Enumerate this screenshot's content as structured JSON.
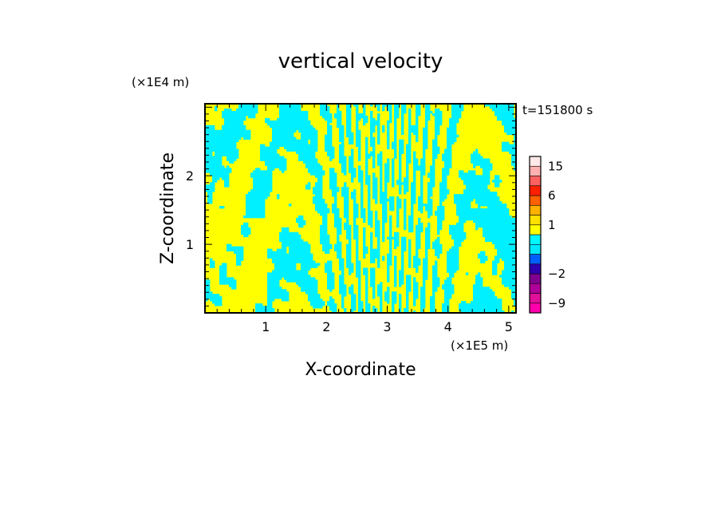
{
  "chart_data": {
    "type": "heatmap",
    "title": "vertical velocity",
    "time_label": "t=151800 s",
    "xlabel": "X-coordinate",
    "ylabel": "Z-coordinate",
    "x_unit": "(×1E5 m)",
    "y_unit": "(×1E4 m)",
    "xlim": [
      0,
      5.12
    ],
    "ylim": [
      0,
      3.05
    ],
    "x_ticks": [
      1,
      2,
      3,
      4,
      5
    ],
    "y_ticks": [
      1,
      2
    ],
    "legend_placement": "right",
    "colorbar": {
      "levels": [
        -12,
        -9,
        -6,
        -4,
        -2,
        -1,
        -0.5,
        0,
        0.5,
        1,
        2,
        4,
        6,
        9,
        12,
        15,
        20
      ],
      "colors": [
        "#ff00aa",
        "#e0109a",
        "#b0009a",
        "#800090",
        "#3000b0",
        "#0060ff",
        "#00e8ff",
        "#00f8ff",
        "#ffff00",
        "#ffe000",
        "#ffb000",
        "#ff6000",
        "#ff2000",
        "#ff6060",
        "#ffb0b0",
        "#ffe8e8"
      ],
      "labels": [
        {
          "value": 15,
          "text": "15"
        },
        {
          "value": 6,
          "text": "6"
        },
        {
          "value": 1,
          "text": "1"
        },
        {
          "value": -2,
          "text": "−2"
        },
        {
          "value": -9,
          "text": "−9"
        }
      ]
    },
    "field_colors": {
      "positive": "#ffff00",
      "negative": "#00f0ff"
    }
  }
}
